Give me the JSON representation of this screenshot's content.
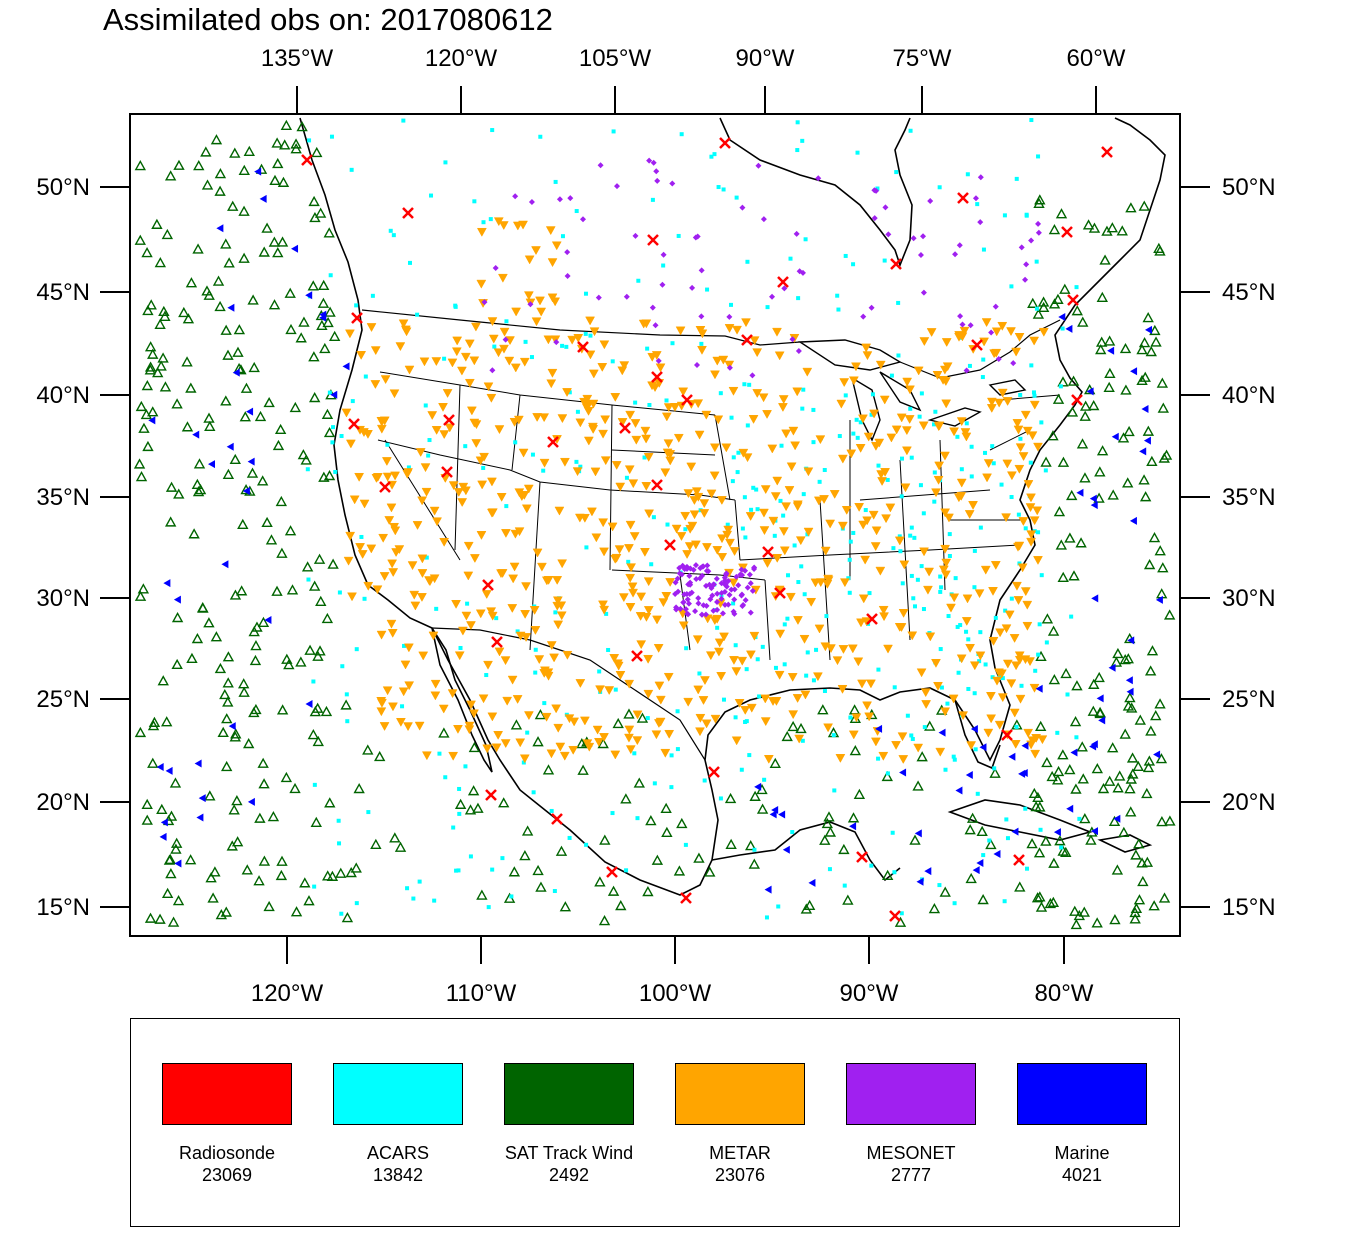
{
  "title": "Assimilated obs on: 2017080612",
  "map": {
    "projection": "lambert-conformal",
    "top_lon_labels": [
      "135°W",
      "120°W",
      "105°W",
      "90°W",
      "75°W",
      "60°W"
    ],
    "bottom_lon_labels": [
      "120°W",
      "110°W",
      "100°W",
      "90°W",
      "80°W"
    ],
    "lat_labels": [
      "50°N",
      "45°N",
      "40°N",
      "35°N",
      "30°N",
      "25°N",
      "20°N",
      "15°N"
    ],
    "background_color": "#ffffff",
    "coastline_color": "#000000"
  },
  "legend": [
    {
      "label": "Radiosonde",
      "count": "23069",
      "color": "#ff0000",
      "marker": "x"
    },
    {
      "label": "ACARS",
      "count": "13842",
      "color": "#00ffff",
      "marker": "square"
    },
    {
      "label": "SAT Track Wind",
      "count": "2492",
      "color": "#006400",
      "marker": "triangle-up"
    },
    {
      "label": "METAR",
      "count": "23076",
      "color": "#ffa500",
      "marker": "triangle-down"
    },
    {
      "label": "MESONET",
      "count": "2777",
      "color": "#a020f0",
      "marker": "diamond"
    },
    {
      "label": "Marine",
      "count": "4021",
      "color": "#0000ff",
      "marker": "triangle-left"
    }
  ]
}
